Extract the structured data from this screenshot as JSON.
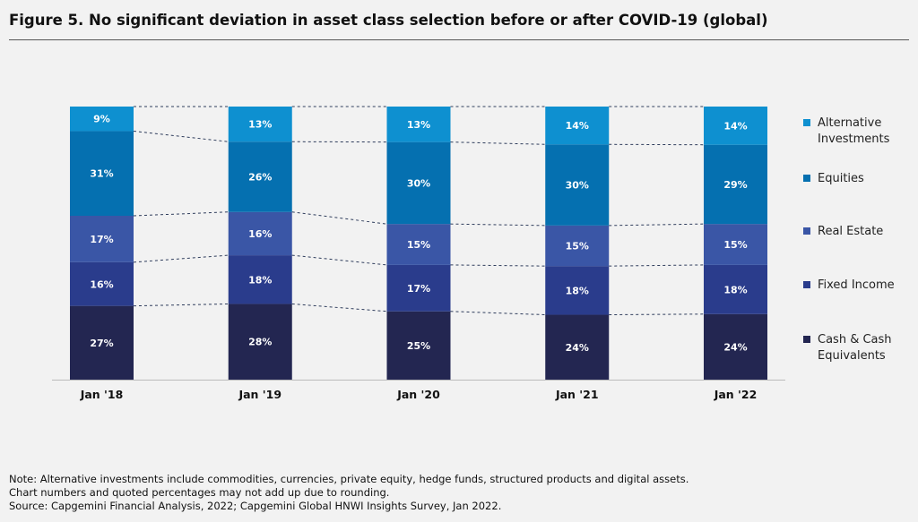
{
  "title": "Figure 5. No significant deviation in asset class selection before or after COVID-19 (global)",
  "chart_data": {
    "type": "bar",
    "stacked": true,
    "categories": [
      "Jan '18",
      "Jan '19",
      "Jan '20",
      "Jan '21",
      "Jan '22"
    ],
    "series": [
      {
        "name": "Cash & Cash Equivalents",
        "values": [
          27,
          28,
          25,
          24,
          24
        ],
        "labels": [
          "27%",
          "28%",
          "25%",
          "24%",
          "24%"
        ],
        "color": "#232651"
      },
      {
        "name": "Fixed Income",
        "values": [
          16,
          18,
          17,
          18,
          18
        ],
        "labels": [
          "16%",
          "18%",
          "17%",
          "18%",
          "18%"
        ],
        "color": "#2a3c8c"
      },
      {
        "name": "Real Estate",
        "values": [
          17,
          16,
          15,
          15,
          15
        ],
        "labels": [
          "17%",
          "16%",
          "15%",
          "15%",
          "15%"
        ],
        "color": "#3a56a6"
      },
      {
        "name": "Equities",
        "values": [
          31,
          26,
          30,
          30,
          29
        ],
        "labels": [
          "31%",
          "26%",
          "30%",
          "30%",
          "29%"
        ],
        "color": "#0570b0"
      },
      {
        "name": "Alternative Investments",
        "values": [
          9,
          13,
          13,
          14,
          14
        ],
        "labels": [
          "9%",
          "13%",
          "13%",
          "14%",
          "14%"
        ],
        "color": "#0e90d0"
      }
    ],
    "legend": {
      "placement": "right",
      "entries": [
        {
          "lines": [
            "Alternative",
            "Investments"
          ],
          "color": "#0e90d0"
        },
        {
          "lines": [
            "Equities"
          ],
          "color": "#0570b0"
        },
        {
          "lines": [
            "Real Estate"
          ],
          "color": "#3a56a6"
        },
        {
          "lines": [
            "Fixed Income"
          ],
          "color": "#2a3c8c"
        },
        {
          "lines": [
            "Cash & Cash",
            "Equivalents"
          ],
          "color": "#232651"
        }
      ]
    },
    "connector_lines": true,
    "grid": false
  },
  "notes": [
    "Note: Alternative investments include commodities, currencies, private equity, hedge funds, structured products and digital assets.",
    "Chart numbers and quoted percentages may not add up due to rounding.",
    "Source: Capgemini Financial Analysis, 2022; Capgemini Global HNWI Insights Survey, Jan 2022."
  ]
}
